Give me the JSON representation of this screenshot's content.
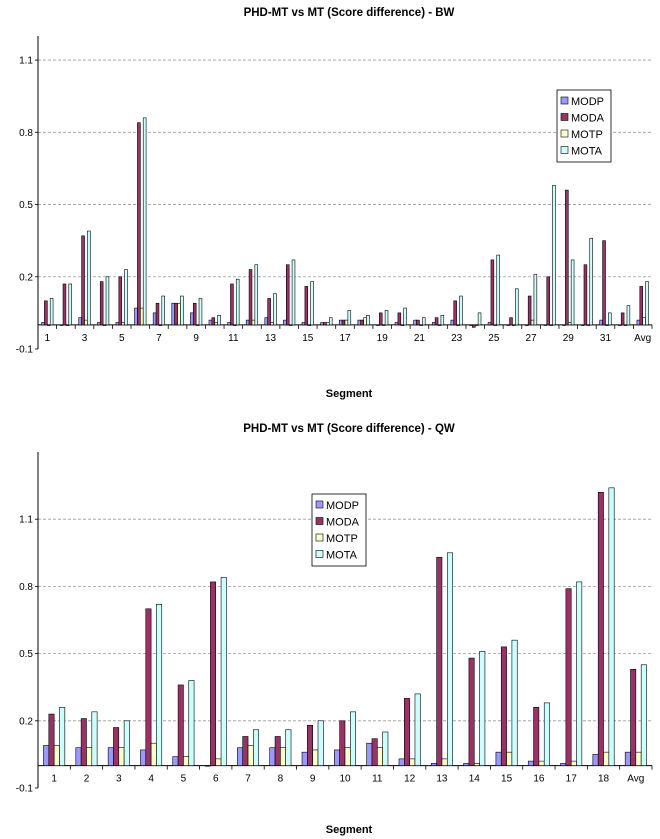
{
  "chart_data": [
    {
      "type": "bar",
      "title": "PHD-MT vs MT (Score difference) - BW",
      "xlabel": "Segment",
      "ylabel": "",
      "ylim": [
        -0.1,
        1.2
      ],
      "yticks": [
        "-0.1",
        "0.2",
        "0.5",
        "0.8",
        "1.1"
      ],
      "ytick_values": [
        -0.1,
        0.2,
        0.5,
        0.8,
        1.1
      ],
      "grid": true,
      "legend_position": "top-right",
      "categories": [
        "1",
        "2",
        "3",
        "4",
        "5",
        "6",
        "7",
        "8",
        "9",
        "10",
        "11",
        "12",
        "13",
        "14",
        "15",
        "16",
        "17",
        "18",
        "19",
        "20",
        "21",
        "22",
        "23",
        "24",
        "25",
        "26",
        "27",
        "28",
        "29",
        "30",
        "31",
        "32",
        "Avg"
      ],
      "category_labels": [
        "1",
        "",
        "3",
        "",
        "5",
        "",
        "7",
        "",
        "9",
        "",
        "11",
        "",
        "13",
        "",
        "15",
        "",
        "17",
        "",
        "19",
        "",
        "21",
        "",
        "23",
        "",
        "25",
        "",
        "27",
        "",
        "29",
        "",
        "31",
        "",
        "Avg"
      ],
      "series": [
        {
          "name": "MODP",
          "color": "#9999ff",
          "values": [
            0.01,
            0.0,
            0.03,
            0.01,
            0.01,
            0.07,
            0.05,
            0.09,
            0.05,
            0.02,
            0.01,
            0.02,
            0.03,
            0.02,
            0.01,
            0.01,
            0.02,
            0.02,
            0.0,
            0.01,
            0.02,
            0.01,
            0.02,
            0.0,
            0.01,
            0.0,
            0.0,
            0.0,
            0.0,
            0.0,
            0.02,
            0.0,
            0.02
          ]
        },
        {
          "name": "MODA",
          "color": "#993366",
          "values": [
            0.1,
            0.17,
            0.37,
            0.18,
            0.2,
            0.84,
            0.09,
            0.09,
            0.09,
            0.03,
            0.17,
            0.23,
            0.11,
            0.25,
            0.16,
            0.01,
            0.02,
            0.02,
            0.05,
            0.05,
            0.02,
            0.03,
            0.1,
            -0.01,
            0.27,
            0.03,
            0.12,
            0.2,
            0.56,
            0.25,
            0.35,
            0.05,
            0.16
          ]
        },
        {
          "name": "MOTP",
          "color": "#ffffcc",
          "values": [
            0.0,
            0.0,
            0.02,
            0.0,
            0.01,
            0.07,
            0.0,
            0.09,
            0.0,
            0.01,
            0.0,
            0.02,
            0.01,
            0.0,
            0.0,
            0.01,
            0.02,
            0.03,
            0.0,
            0.0,
            0.0,
            0.0,
            0.0,
            0.0,
            0.0,
            0.0,
            0.02,
            0.0,
            0.01,
            0.0,
            0.0,
            0.0,
            0.03
          ]
        },
        {
          "name": "MOTA",
          "color": "#ccffff",
          "values": [
            0.11,
            0.17,
            0.39,
            0.2,
            0.23,
            0.86,
            0.12,
            0.12,
            0.11,
            0.04,
            0.19,
            0.25,
            0.13,
            0.27,
            0.18,
            0.03,
            0.06,
            0.04,
            0.06,
            0.07,
            0.03,
            0.04,
            0.12,
            0.05,
            0.29,
            0.15,
            0.21,
            0.58,
            0.27,
            0.36,
            0.05,
            0.08,
            0.18
          ]
        }
      ]
    },
    {
      "type": "bar",
      "title": "PHD-MT vs MT (Score difference) - QW",
      "xlabel": "Segment",
      "ylabel": "",
      "ylim": [
        -0.1,
        1.4
      ],
      "yticks": [
        "-0.1",
        "0.2",
        "0.5",
        "0.8",
        "1.1"
      ],
      "ytick_values": [
        -0.1,
        0.2,
        0.5,
        0.8,
        1.1
      ],
      "grid": true,
      "legend_position": "top-center",
      "categories": [
        "1",
        "2",
        "3",
        "4",
        "5",
        "6",
        "7",
        "8",
        "9",
        "10",
        "11",
        "12",
        "13",
        "14",
        "15",
        "16",
        "17",
        "18",
        "Avg"
      ],
      "category_labels": [
        "1",
        "2",
        "3",
        "4",
        "5",
        "6",
        "7",
        "8",
        "9",
        "10",
        "11",
        "12",
        "13",
        "14",
        "15",
        "16",
        "17",
        "18",
        "Avg"
      ],
      "series": [
        {
          "name": "MODP",
          "color": "#9999ff",
          "values": [
            0.09,
            0.08,
            0.08,
            0.07,
            0.04,
            0.0,
            0.08,
            0.08,
            0.06,
            0.07,
            0.1,
            0.03,
            0.01,
            0.01,
            0.06,
            0.02,
            0.01,
            0.05,
            0.06
          ]
        },
        {
          "name": "MODA",
          "color": "#993366",
          "values": [
            0.23,
            0.21,
            0.17,
            0.7,
            0.36,
            0.82,
            0.13,
            0.13,
            0.18,
            0.2,
            0.12,
            0.3,
            0.93,
            0.48,
            0.53,
            0.26,
            0.79,
            1.22,
            0.43
          ]
        },
        {
          "name": "MOTP",
          "color": "#ffffcc",
          "values": [
            0.09,
            0.08,
            0.08,
            0.1,
            0.04,
            0.03,
            0.09,
            0.08,
            0.07,
            0.08,
            0.08,
            0.03,
            0.03,
            0.01,
            0.06,
            0.02,
            0.02,
            0.06,
            0.06
          ]
        },
        {
          "name": "MOTA",
          "color": "#ccffff",
          "values": [
            0.26,
            0.24,
            0.2,
            0.72,
            0.38,
            0.84,
            0.16,
            0.16,
            0.2,
            0.24,
            0.15,
            0.32,
            0.95,
            0.51,
            0.56,
            0.28,
            0.82,
            1.24,
            0.45
          ]
        }
      ]
    }
  ]
}
